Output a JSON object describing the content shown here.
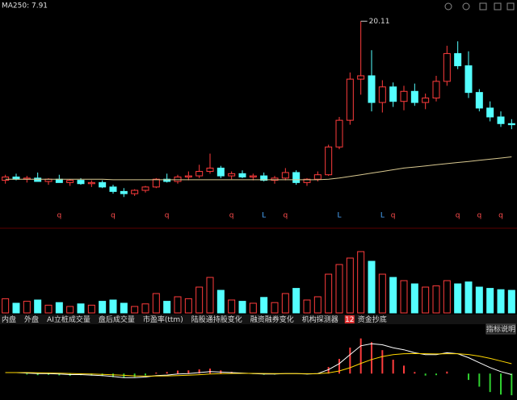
{
  "header": {
    "ma_label": "MA250: 7.91"
  },
  "chart_data": {
    "type": "candlestick",
    "ylim": [
      2,
      21
    ],
    "open": [
      5.8,
      6.1,
      5.9,
      6.0,
      5.7,
      5.9,
      5.6,
      5.8,
      5.5,
      5.6,
      5.2,
      4.8,
      4.6,
      4.9,
      5.2,
      5.9,
      5.7,
      6.1,
      6.2,
      6.6,
      6.9,
      6.2,
      6.4,
      6.1,
      6.2,
      5.8,
      6.0,
      6.5,
      5.6,
      5.9,
      6.3,
      8.8,
      11.2,
      14.9,
      15.2,
      12.8,
      14.2,
      12.9,
      13.8,
      12.8,
      13.2,
      14.7,
      17.2,
      16.1,
      13.7,
      12.3,
      11.5,
      10.9
    ],
    "high": [
      6.3,
      6.4,
      6.2,
      6.5,
      6.0,
      6.3,
      5.9,
      6.0,
      5.8,
      5.8,
      5.4,
      5.1,
      5.0,
      5.3,
      6.0,
      6.4,
      6.3,
      6.6,
      7.2,
      8.2,
      7.1,
      6.6,
      6.7,
      6.4,
      6.5,
      6.2,
      6.9,
      6.7,
      6.0,
      6.6,
      9.0,
      11.5,
      15.5,
      20.11,
      17.5,
      14.8,
      14.6,
      14.3,
      14.5,
      13.6,
      15.2,
      17.9,
      18.3,
      17.4,
      14.0,
      12.9,
      12.0,
      11.3
    ],
    "low": [
      5.5,
      5.8,
      5.6,
      5.7,
      5.4,
      5.6,
      5.3,
      5.4,
      5.2,
      5.1,
      4.6,
      4.3,
      4.4,
      4.7,
      5.1,
      5.6,
      5.5,
      5.8,
      6.0,
      6.4,
      6.0,
      5.9,
      6.0,
      5.8,
      5.7,
      5.5,
      5.8,
      5.4,
      5.3,
      5.7,
      6.2,
      8.6,
      10.8,
      13.5,
      12.0,
      11.9,
      12.4,
      12.1,
      12.5,
      12.2,
      12.9,
      14.3,
      15.8,
      13.2,
      12.0,
      11.1,
      10.6,
      10.4
    ],
    "close": [
      6.1,
      5.9,
      6.0,
      5.7,
      5.9,
      5.6,
      5.8,
      5.5,
      5.6,
      5.2,
      4.8,
      4.6,
      4.9,
      5.2,
      5.9,
      5.7,
      6.1,
      6.2,
      6.6,
      6.9,
      6.2,
      6.4,
      6.1,
      6.2,
      5.8,
      6.0,
      6.5,
      5.6,
      5.9,
      6.3,
      8.8,
      11.2,
      14.9,
      15.2,
      12.8,
      14.2,
      12.9,
      13.8,
      12.8,
      13.2,
      14.7,
      17.2,
      16.1,
      13.7,
      12.3,
      11.5,
      10.9,
      10.8
    ],
    "ma250": [
      5.9,
      5.9,
      5.9,
      5.9,
      5.9,
      5.9,
      5.9,
      5.9,
      5.9,
      5.9,
      5.85,
      5.85,
      5.85,
      5.85,
      5.85,
      5.85,
      5.85,
      5.85,
      5.85,
      5.85,
      5.85,
      5.85,
      5.85,
      5.85,
      5.85,
      5.85,
      5.85,
      5.85,
      5.85,
      5.85,
      5.9,
      6.0,
      6.15,
      6.3,
      6.45,
      6.6,
      6.75,
      6.9,
      7.0,
      7.1,
      7.2,
      7.3,
      7.4,
      7.5,
      7.6,
      7.7,
      7.8,
      7.91
    ],
    "signals": [
      null,
      null,
      null,
      null,
      null,
      "q",
      null,
      null,
      null,
      null,
      "q",
      null,
      null,
      null,
      null,
      "q",
      null,
      null,
      null,
      null,
      null,
      "q",
      null,
      null,
      "L",
      null,
      "q",
      null,
      null,
      null,
      null,
      "L",
      null,
      null,
      null,
      "L",
      "q",
      null,
      null,
      null,
      null,
      null,
      "q",
      null,
      "q",
      null,
      "q",
      null
    ],
    "volume_ylim": [
      0,
      100
    ],
    "volume": [
      22,
      15,
      18,
      20,
      12,
      16,
      10,
      14,
      12,
      18,
      20,
      15,
      10,
      14,
      30,
      18,
      25,
      22,
      40,
      55,
      35,
      20,
      18,
      15,
      24,
      16,
      30,
      38,
      20,
      25,
      60,
      75,
      85,
      95,
      80,
      60,
      55,
      50,
      45,
      40,
      42,
      50,
      45,
      48,
      40,
      38,
      36,
      35
    ],
    "macd_ylim": [
      -2.5,
      4
    ],
    "dif": [
      0.1,
      0.1,
      0.05,
      0,
      0,
      -0.05,
      -0.1,
      -0.1,
      -0.15,
      -0.2,
      -0.3,
      -0.4,
      -0.4,
      -0.35,
      -0.2,
      -0.15,
      -0.05,
      0,
      0.1,
      0.2,
      0.15,
      0.1,
      0.05,
      0,
      -0.05,
      -0.05,
      0,
      0,
      -0.05,
      0,
      0.4,
      1.0,
      1.9,
      2.8,
      3.0,
      2.9,
      2.6,
      2.4,
      2.1,
      1.9,
      1.9,
      2.1,
      2.0,
      1.6,
      1.1,
      0.6,
      0.2,
      -0.1
    ],
    "dea": [
      0.1,
      0.1,
      0.1,
      0.08,
      0.06,
      0.04,
      0.01,
      -0.02,
      -0.05,
      -0.08,
      -0.12,
      -0.18,
      -0.23,
      -0.26,
      -0.25,
      -0.23,
      -0.2,
      -0.16,
      -0.11,
      -0.05,
      -0.01,
      0.01,
      0.02,
      0.02,
      0.01,
      0,
      0,
      0,
      -0.01,
      -0.01,
      0.07,
      0.26,
      0.59,
      1.03,
      1.42,
      1.72,
      1.9,
      2.0,
      2.02,
      2.0,
      1.98,
      2.0,
      2.0,
      1.92,
      1.76,
      1.53,
      1.26,
      0.99
    ],
    "hist": [
      0,
      0,
      -0.1,
      -0.16,
      -0.12,
      -0.18,
      -0.22,
      -0.16,
      -0.2,
      -0.24,
      -0.36,
      -0.44,
      -0.34,
      -0.18,
      0.1,
      0.16,
      0.3,
      0.32,
      0.42,
      0.5,
      0.32,
      0.18,
      0.06,
      -0.04,
      -0.12,
      -0.1,
      0,
      0,
      -0.08,
      0.02,
      0.66,
      1.48,
      2.62,
      3.54,
      3.16,
      2.36,
      1.4,
      0.8,
      0.16,
      -0.2,
      -0.16,
      0.2,
      0,
      -0.64,
      -1.32,
      -1.86,
      -2.12,
      -2.18
    ]
  },
  "tabs": [
    "内盘",
    "外盘",
    "AI立桩成交量",
    "盘后成交量",
    "市盈率(ttm)",
    "陆股通持股变化",
    "融资融券变化",
    "机构探测器"
  ],
  "badge": "12",
  "last_tab": "资金抄底",
  "help_button": "指标说明"
}
